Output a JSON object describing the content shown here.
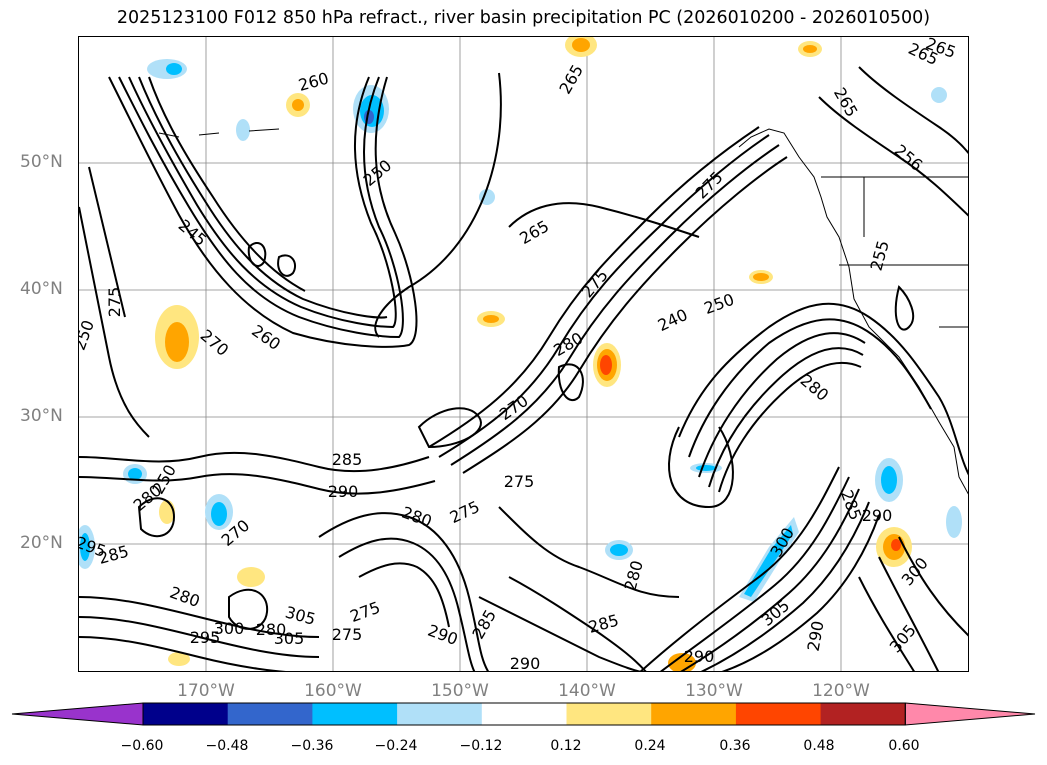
{
  "title": "2025123100 F012 850 hPa refract., river basin precipitation PC (2026010200 - 2026010500)",
  "lat_labels": [
    "50°N",
    "40°N",
    "30°N",
    "20°N"
  ],
  "lon_labels": [
    "170°W",
    "160°W",
    "150°W",
    "140°W",
    "130°W",
    "120°W"
  ],
  "colorbar": {
    "colors": [
      "#9933cc",
      "#00008b",
      "#3366cc",
      "#00bfff",
      "#b0e0f8",
      "#ffffff",
      "#ffe680",
      "#ffa500",
      "#ff4500",
      "#b22222",
      "#ff88aa"
    ],
    "tick_labels": [
      "−0.60",
      "−0.48",
      "−0.36",
      "−0.24",
      "−0.12",
      "0.12",
      "0.24",
      "0.36",
      "0.48",
      "0.60"
    ]
  },
  "contour_labels": [
    "265",
    "260",
    "265",
    "265",
    "250",
    "265",
    "256",
    "255",
    "265",
    "275",
    "245",
    "275",
    "240",
    "250",
    "280",
    "270",
    "260",
    "270",
    "250",
    "280",
    "275",
    "285",
    "290",
    "275",
    "280",
    "275",
    "270",
    "250",
    "280",
    "290",
    "295",
    "285",
    "300",
    "280",
    "305",
    "295",
    "275",
    "290",
    "285",
    "275",
    "290",
    "285",
    "280",
    "300",
    "305",
    "290",
    "285",
    "305",
    "300",
    "305",
    "280",
    "290"
  ]
}
